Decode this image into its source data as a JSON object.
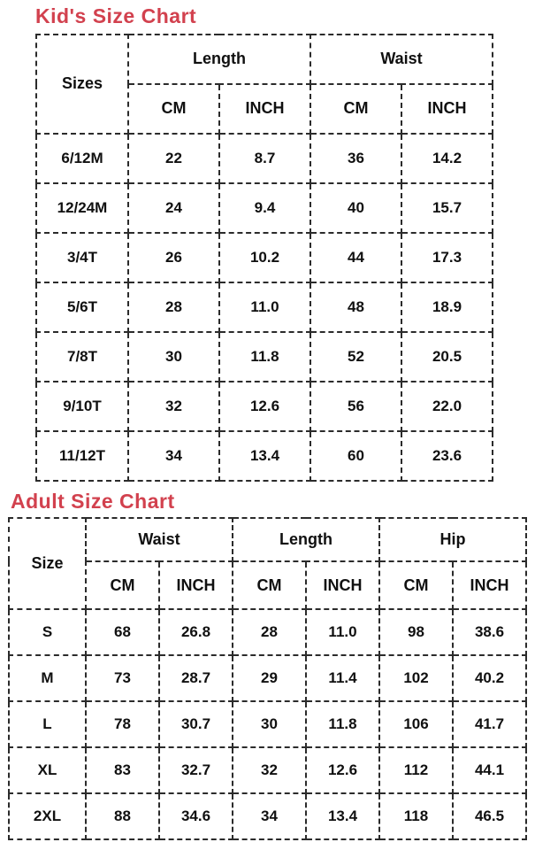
{
  "colors": {
    "title_red": "#d2414e",
    "header_gray": "#ececec",
    "highlight_yellow": "#f2f201",
    "border_black": "#2b2b2b",
    "text_black": "#101010",
    "background": "#ffffff"
  },
  "chart_data": [
    {
      "type": "table",
      "title": "Kid's Size Chart",
      "corner_header": "Sizes",
      "column_groups": [
        "Length",
        "Waist"
      ],
      "unit_headers": [
        "CM",
        "INCH",
        "CM",
        "INCH"
      ],
      "highlight_note": "INCH unit header cells highlighted yellow; corner and group header cells light gray; all borders dash-dot black",
      "rows": [
        [
          "6/12M",
          "22",
          "8.7",
          "36",
          "14.2"
        ],
        [
          "12/24M",
          "24",
          "9.4",
          "40",
          "15.7"
        ],
        [
          "3/4T",
          "26",
          "10.2",
          "44",
          "17.3"
        ],
        [
          "5/6T",
          "28",
          "11.0",
          "48",
          "18.9"
        ],
        [
          "7/8T",
          "30",
          "11.8",
          "52",
          "20.5"
        ],
        [
          "9/10T",
          "32",
          "12.6",
          "56",
          "22.0"
        ],
        [
          "11/12T",
          "34",
          "13.4",
          "60",
          "23.6"
        ]
      ]
    },
    {
      "type": "table",
      "title": "Adult Size Chart",
      "corner_header": "Size",
      "column_groups": [
        "Waist",
        "Length",
        "Hip"
      ],
      "unit_headers": [
        "CM",
        "INCH",
        "CM",
        "INCH",
        "CM",
        "INCH"
      ],
      "highlight_note": "INCH unit header cells highlighted yellow; corner and group header cells light gray; all borders dash-dot black",
      "rows": [
        [
          "S",
          "68",
          "26.8",
          "28",
          "11.0",
          "98",
          "38.6"
        ],
        [
          "M",
          "73",
          "28.7",
          "29",
          "11.4",
          "102",
          "40.2"
        ],
        [
          "L",
          "78",
          "30.7",
          "30",
          "11.8",
          "106",
          "41.7"
        ],
        [
          "XL",
          "83",
          "32.7",
          "32",
          "12.6",
          "112",
          "44.1"
        ],
        [
          "2XL",
          "88",
          "34.6",
          "34",
          "13.4",
          "118",
          "46.5"
        ]
      ]
    }
  ]
}
